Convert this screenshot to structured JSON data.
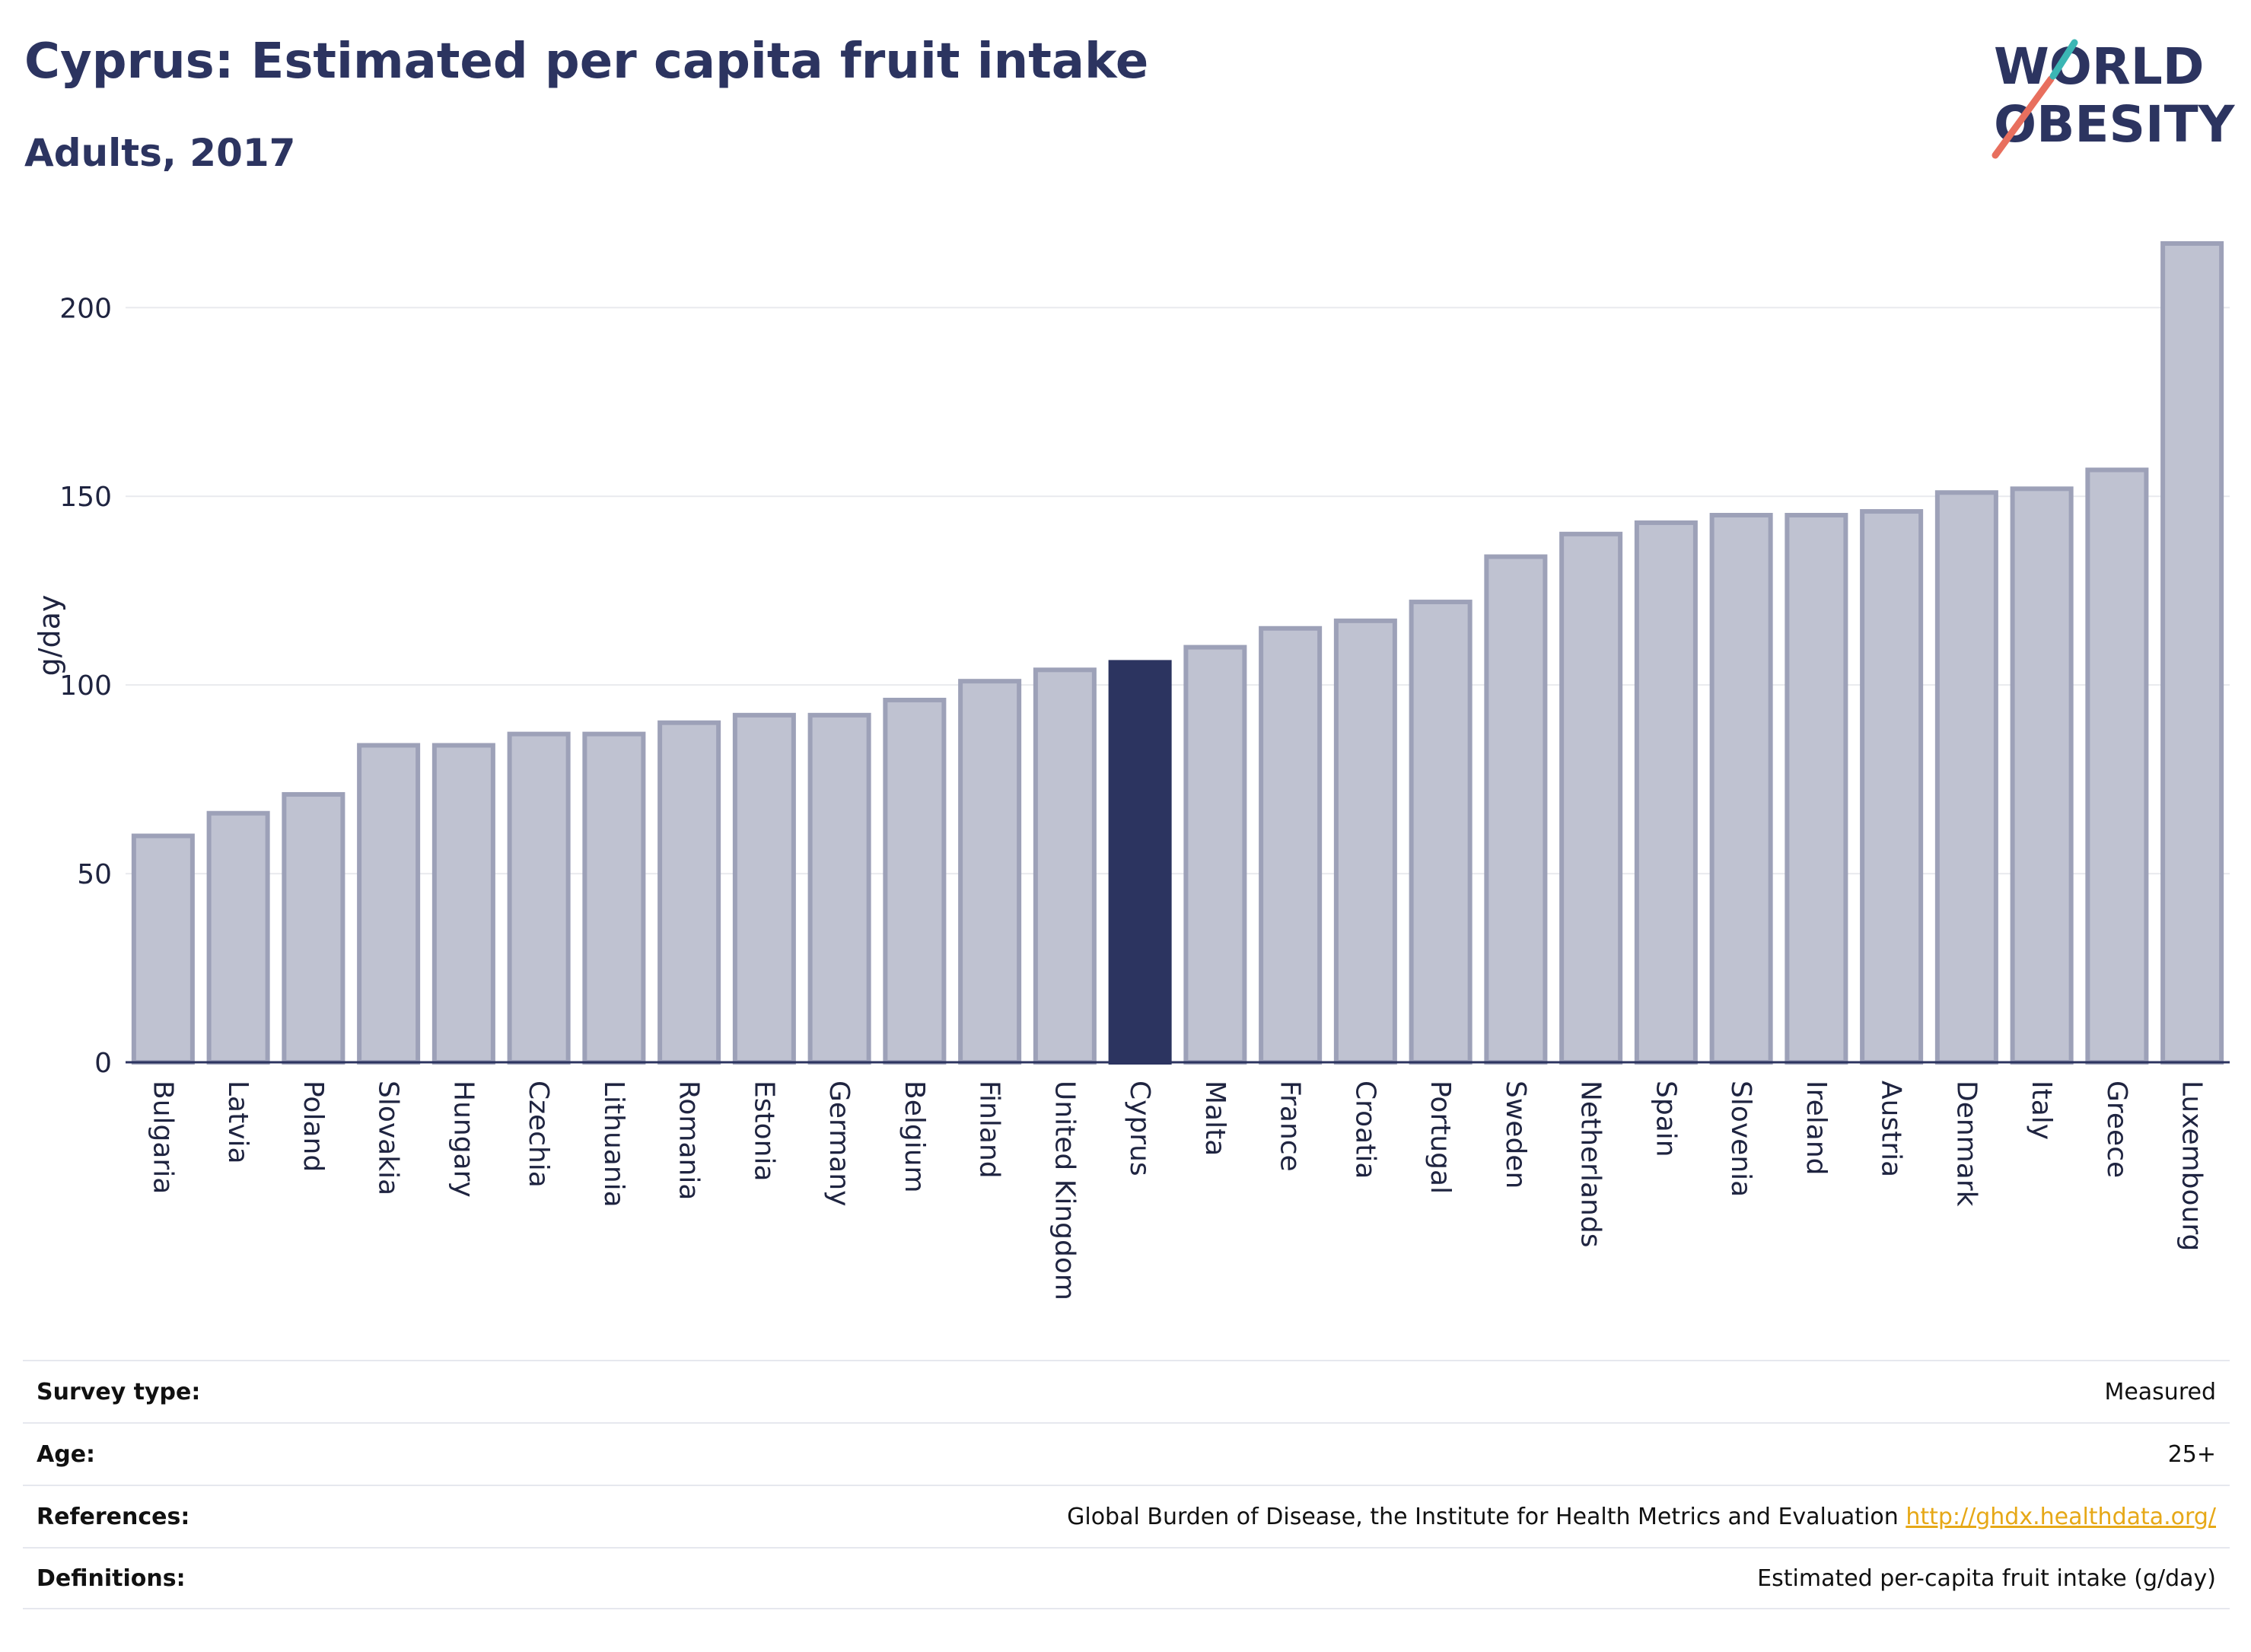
{
  "header": {
    "title": "Cyprus: Estimated per capita fruit intake",
    "subtitle": "Adults, 2017"
  },
  "logo": {
    "line1": "WORLD",
    "line2": "OBESITY"
  },
  "colors": {
    "title": "#2c3460",
    "bar": "#bfc2d1",
    "bar_border": "#9da1b8",
    "highlight": "#2c3460",
    "grid": "#e9eaee",
    "logo_teal": "#3bb6b4",
    "logo_coral": "#e86f5e",
    "link": "#e6a817"
  },
  "chart_data": {
    "type": "bar",
    "ylabel": "g/day",
    "xlabel": "",
    "ylim": [
      0,
      217
    ],
    "yticks": [
      0,
      50,
      100,
      150,
      200
    ],
    "grid": true,
    "highlight": "Cyprus",
    "categories": [
      "Bulgaria",
      "Latvia",
      "Poland",
      "Slovakia",
      "Hungary",
      "Czechia",
      "Lithuania",
      "Romania",
      "Estonia",
      "Germany",
      "Belgium",
      "Finland",
      "United Kingdom",
      "Cyprus",
      "Malta",
      "France",
      "Croatia",
      "Portugal",
      "Sweden",
      "Netherlands",
      "Spain",
      "Slovenia",
      "Ireland",
      "Austria",
      "Denmark",
      "Italy",
      "Greece",
      "Luxembourg"
    ],
    "values": [
      60,
      66,
      71,
      84,
      84,
      87,
      87,
      90,
      92,
      92,
      96,
      101,
      104,
      106,
      110,
      115,
      117,
      122,
      134,
      140,
      143,
      145,
      145,
      146,
      151,
      152,
      157,
      217
    ]
  },
  "info": [
    {
      "label": "Survey type:",
      "value": "Measured"
    },
    {
      "label": "Age:",
      "value": "25+"
    },
    {
      "label": "References:",
      "value": "Global Burden of Disease, the Institute for Health Metrics and Evaluation",
      "link": "http://ghdx.healthdata.org/"
    },
    {
      "label": "Definitions:",
      "value": "Estimated per-capita fruit intake (g/day)"
    }
  ]
}
